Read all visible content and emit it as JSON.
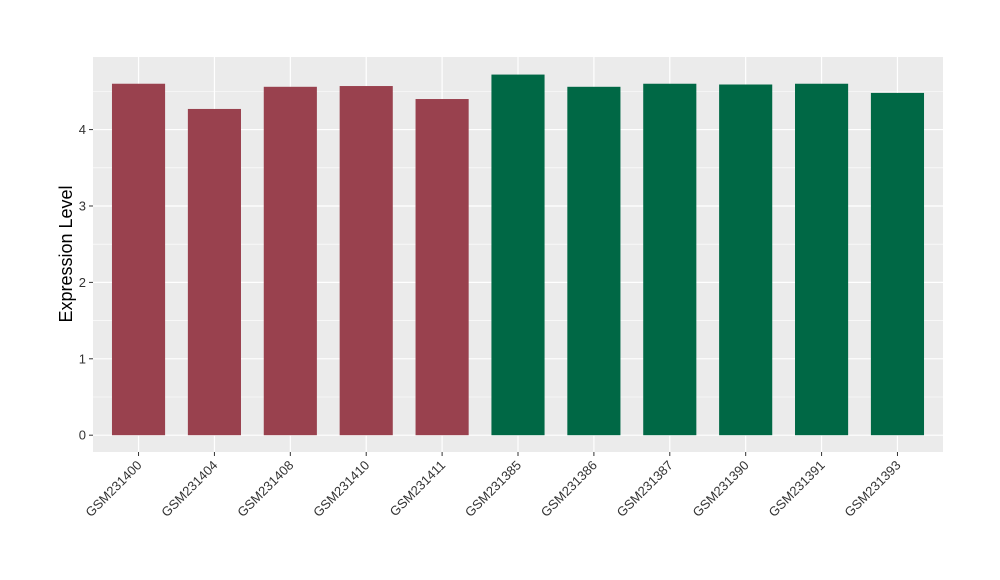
{
  "chart_data": {
    "type": "bar",
    "title": "",
    "xlabel": "",
    "ylabel": "Expression Level",
    "ylim": [
      -0.22,
      4.95
    ],
    "yticks": [
      0,
      1,
      2,
      3,
      4
    ],
    "grid": true,
    "legend": "none",
    "categories": [
      "GSM231400",
      "GSM231404",
      "GSM231408",
      "GSM231410",
      "GSM231411",
      "GSM231385",
      "GSM231386",
      "GSM231387",
      "GSM231390",
      "GSM231391",
      "GSM231393"
    ],
    "values": [
      4.6,
      4.27,
      4.56,
      4.57,
      4.4,
      4.72,
      4.56,
      4.6,
      4.59,
      4.6,
      4.48
    ],
    "groups": [
      0,
      0,
      0,
      0,
      0,
      1,
      1,
      1,
      1,
      1,
      1
    ],
    "colors": [
      "#99414E",
      "#006845"
    ],
    "panel_background": "#EBEBEB",
    "gridline_color": "#FFFFFF",
    "tick_color": "#333333"
  }
}
